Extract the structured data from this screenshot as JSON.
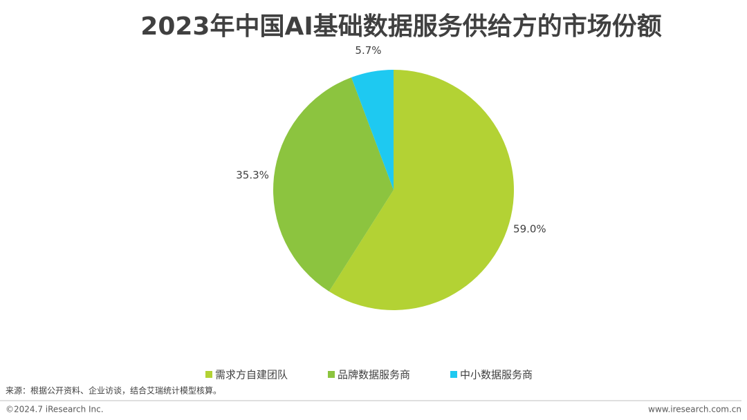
{
  "chart_data": {
    "type": "pie",
    "title": "2023年中国AI基础数据服务供给方的市场份额",
    "categories": [
      "需求方自建团队",
      "品牌数据服务商",
      "中小数据服务商"
    ],
    "values": [
      59.0,
      35.3,
      5.7
    ],
    "value_labels": [
      "59.0%",
      "35.3%",
      "5.7%"
    ],
    "colors": [
      "#b3d234",
      "#8cc43f",
      "#1ec9f1"
    ],
    "legend": "bottom"
  },
  "footer": {
    "source": "来源：根据公开资料、企业访谈，结合艾瑞统计模型核算。",
    "copyright": "©2024.7 iResearch Inc.",
    "website": "www.iresearch.com.cn"
  }
}
